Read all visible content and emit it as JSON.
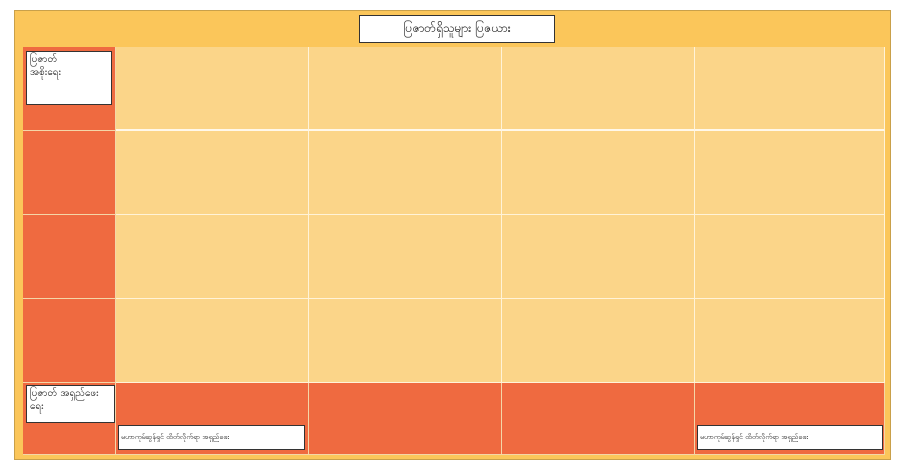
{
  "title": "ပြဇာတ်ရှိသူများ ပြဇယား",
  "labels": {
    "top_left": "ပြဇာတ်\nအစိုးရေး",
    "bottom_left": "ပြဇာတ် အရှည်ဖေး\nရေး",
    "bottom_second": "မဟာကုမ်ဆွန်ရှင် ထိတ်လိုက်ရာ အရှည်ဖေး",
    "bottom_right": "မဟာကုမ်ဆွန်ရှင် ထိတ်လိုက်ရာ အရှည်ဖေး"
  },
  "colors": {
    "frame": "#fbc65a",
    "header": "#ef6a40",
    "body": "#fbd589",
    "grid_line": "#fff3d8"
  }
}
